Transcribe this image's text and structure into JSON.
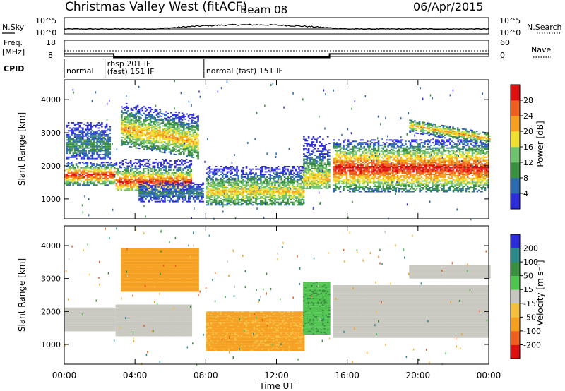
{
  "header": {
    "station": "Christmas Valley West (fitACF)",
    "beam": "Beam 08",
    "date": "06/Apr/2015"
  },
  "top_panels": {
    "nsky_label": "N.Sky",
    "nsearch_label": "N.Search",
    "noise_ticks": [
      "10^5",
      "10^0"
    ],
    "freq_label_1": "Freq.",
    "freq_label_2": "[MHz]",
    "freq_ticks": [
      "18",
      "8"
    ],
    "nave_ticks": [
      "60",
      "0"
    ],
    "nave_label": "Nave",
    "cpid_label": "CPID"
  },
  "cpid_segments": [
    {
      "start": 0.0,
      "end": 2.3,
      "labels": [
        "normal"
      ]
    },
    {
      "start": 2.3,
      "end": 7.9,
      "labels": [
        "rbsp 201 IF",
        "(fast) 151 IF"
      ]
    },
    {
      "start": 7.9,
      "end": 24.0,
      "labels": [
        "normal (fast) 151 IF"
      ]
    }
  ],
  "frequency_series": {
    "name": "Frequency",
    "points": [
      [
        0,
        11.3
      ],
      [
        2.8,
        11.3
      ],
      [
        2.8,
        9.1
      ],
      [
        15,
        9.1
      ],
      [
        15,
        11.3
      ],
      [
        24,
        11.3
      ]
    ]
  },
  "colors": {
    "power": [
      "#2c2cd8",
      "#2c6ab0",
      "#3a9040",
      "#6fc36f",
      "#f0e030",
      "#f5a020",
      "#ef6020",
      "#e01010"
    ],
    "velocity": [
      "#e01010",
      "#ef6020",
      "#f5a020",
      "#f5c040",
      "#c8c8c0",
      "#4fc44f",
      "#3a9040",
      "#2c8a8a",
      "#2c2cd8"
    ]
  },
  "chart_data": [
    {
      "type": "heatmap",
      "name": "power",
      "ylabel": "Slant Range [km]",
      "xlabel": "Time UT",
      "xlim": [
        0,
        24
      ],
      "ylim": [
        400,
        4600
      ],
      "yticks": [
        "1000",
        "2000",
        "3000",
        "4000"
      ],
      "colorbar_label": "Power [dB]",
      "colorbar_ticks": [
        "4",
        "8",
        "12",
        "16",
        "20",
        "24",
        "28"
      ],
      "colorbar_range": [
        0,
        32
      ],
      "features": [
        {
          "t0": 0.0,
          "t1": 2.8,
          "r0": 1400,
          "r1": 2100,
          "peak": 1700,
          "pmax": 30
        },
        {
          "t0": 0.1,
          "t1": 2.6,
          "r0": 2200,
          "r1": 3300,
          "peak": 2600,
          "pmax": 10
        },
        {
          "t0": 2.9,
          "t1": 7.2,
          "r0": 1250,
          "r1": 2200,
          "peak": 1500,
          "pmax": 28
        },
        {
          "t0": 3.2,
          "t1": 7.6,
          "r0": 2600,
          "r1": 3900,
          "peak": 3100,
          "pmax": 22
        },
        {
          "t0": 4.2,
          "t1": 7.8,
          "r0": 900,
          "r1": 1500,
          "peak": 1150,
          "pmax": 8
        },
        {
          "t0": 8.0,
          "t1": 13.5,
          "r0": 800,
          "r1": 2000,
          "peak": 1200,
          "pmax": 20
        },
        {
          "t0": 13.5,
          "t1": 15.0,
          "r0": 1300,
          "r1": 2900,
          "peak": 1600,
          "pmax": 20
        },
        {
          "t0": 15.2,
          "t1": 24.0,
          "r0": 1200,
          "r1": 2800,
          "peak": 1900,
          "pmax": 30
        },
        {
          "t0": 19.5,
          "t1": 24.0,
          "r0": 3000,
          "r1": 3400,
          "peak": 3200,
          "pmax": 22
        }
      ]
    },
    {
      "type": "heatmap",
      "name": "velocity",
      "ylabel": "Slant Range [km]",
      "xlabel": "Time UT",
      "xlim": [
        0,
        24
      ],
      "ylim": [
        400,
        4600
      ],
      "xticks": [
        "00:00",
        "04:00",
        "08:00",
        "12:00",
        "16:00",
        "20:00",
        "00:00"
      ],
      "yticks": [
        "1000",
        "2000",
        "3000",
        "4000"
      ],
      "colorbar_label": "Velocity [m s⁻¹]",
      "colorbar_ticks": [
        "-200",
        "-100",
        "-50",
        "-15",
        "15",
        "50",
        "100",
        "200"
      ],
      "features": [
        {
          "t0": 0.0,
          "t1": 2.8,
          "r0": 1400,
          "r1": 2100,
          "vel": 0
        },
        {
          "t0": 2.9,
          "t1": 7.2,
          "r0": 1250,
          "r1": 2200,
          "vel": 0
        },
        {
          "t0": 3.2,
          "t1": 7.6,
          "r0": 2600,
          "r1": 3900,
          "vel": -70
        },
        {
          "t0": 8.0,
          "t1": 13.5,
          "r0": 800,
          "r1": 2000,
          "vel": -60
        },
        {
          "t0": 13.5,
          "t1": 15.0,
          "r0": 1300,
          "r1": 2900,
          "vel": 40
        },
        {
          "t0": 15.2,
          "t1": 24.0,
          "r0": 1200,
          "r1": 2800,
          "vel": 0
        },
        {
          "t0": 19.5,
          "t1": 24.0,
          "r0": 3000,
          "r1": 3400,
          "vel": 0
        }
      ]
    }
  ]
}
